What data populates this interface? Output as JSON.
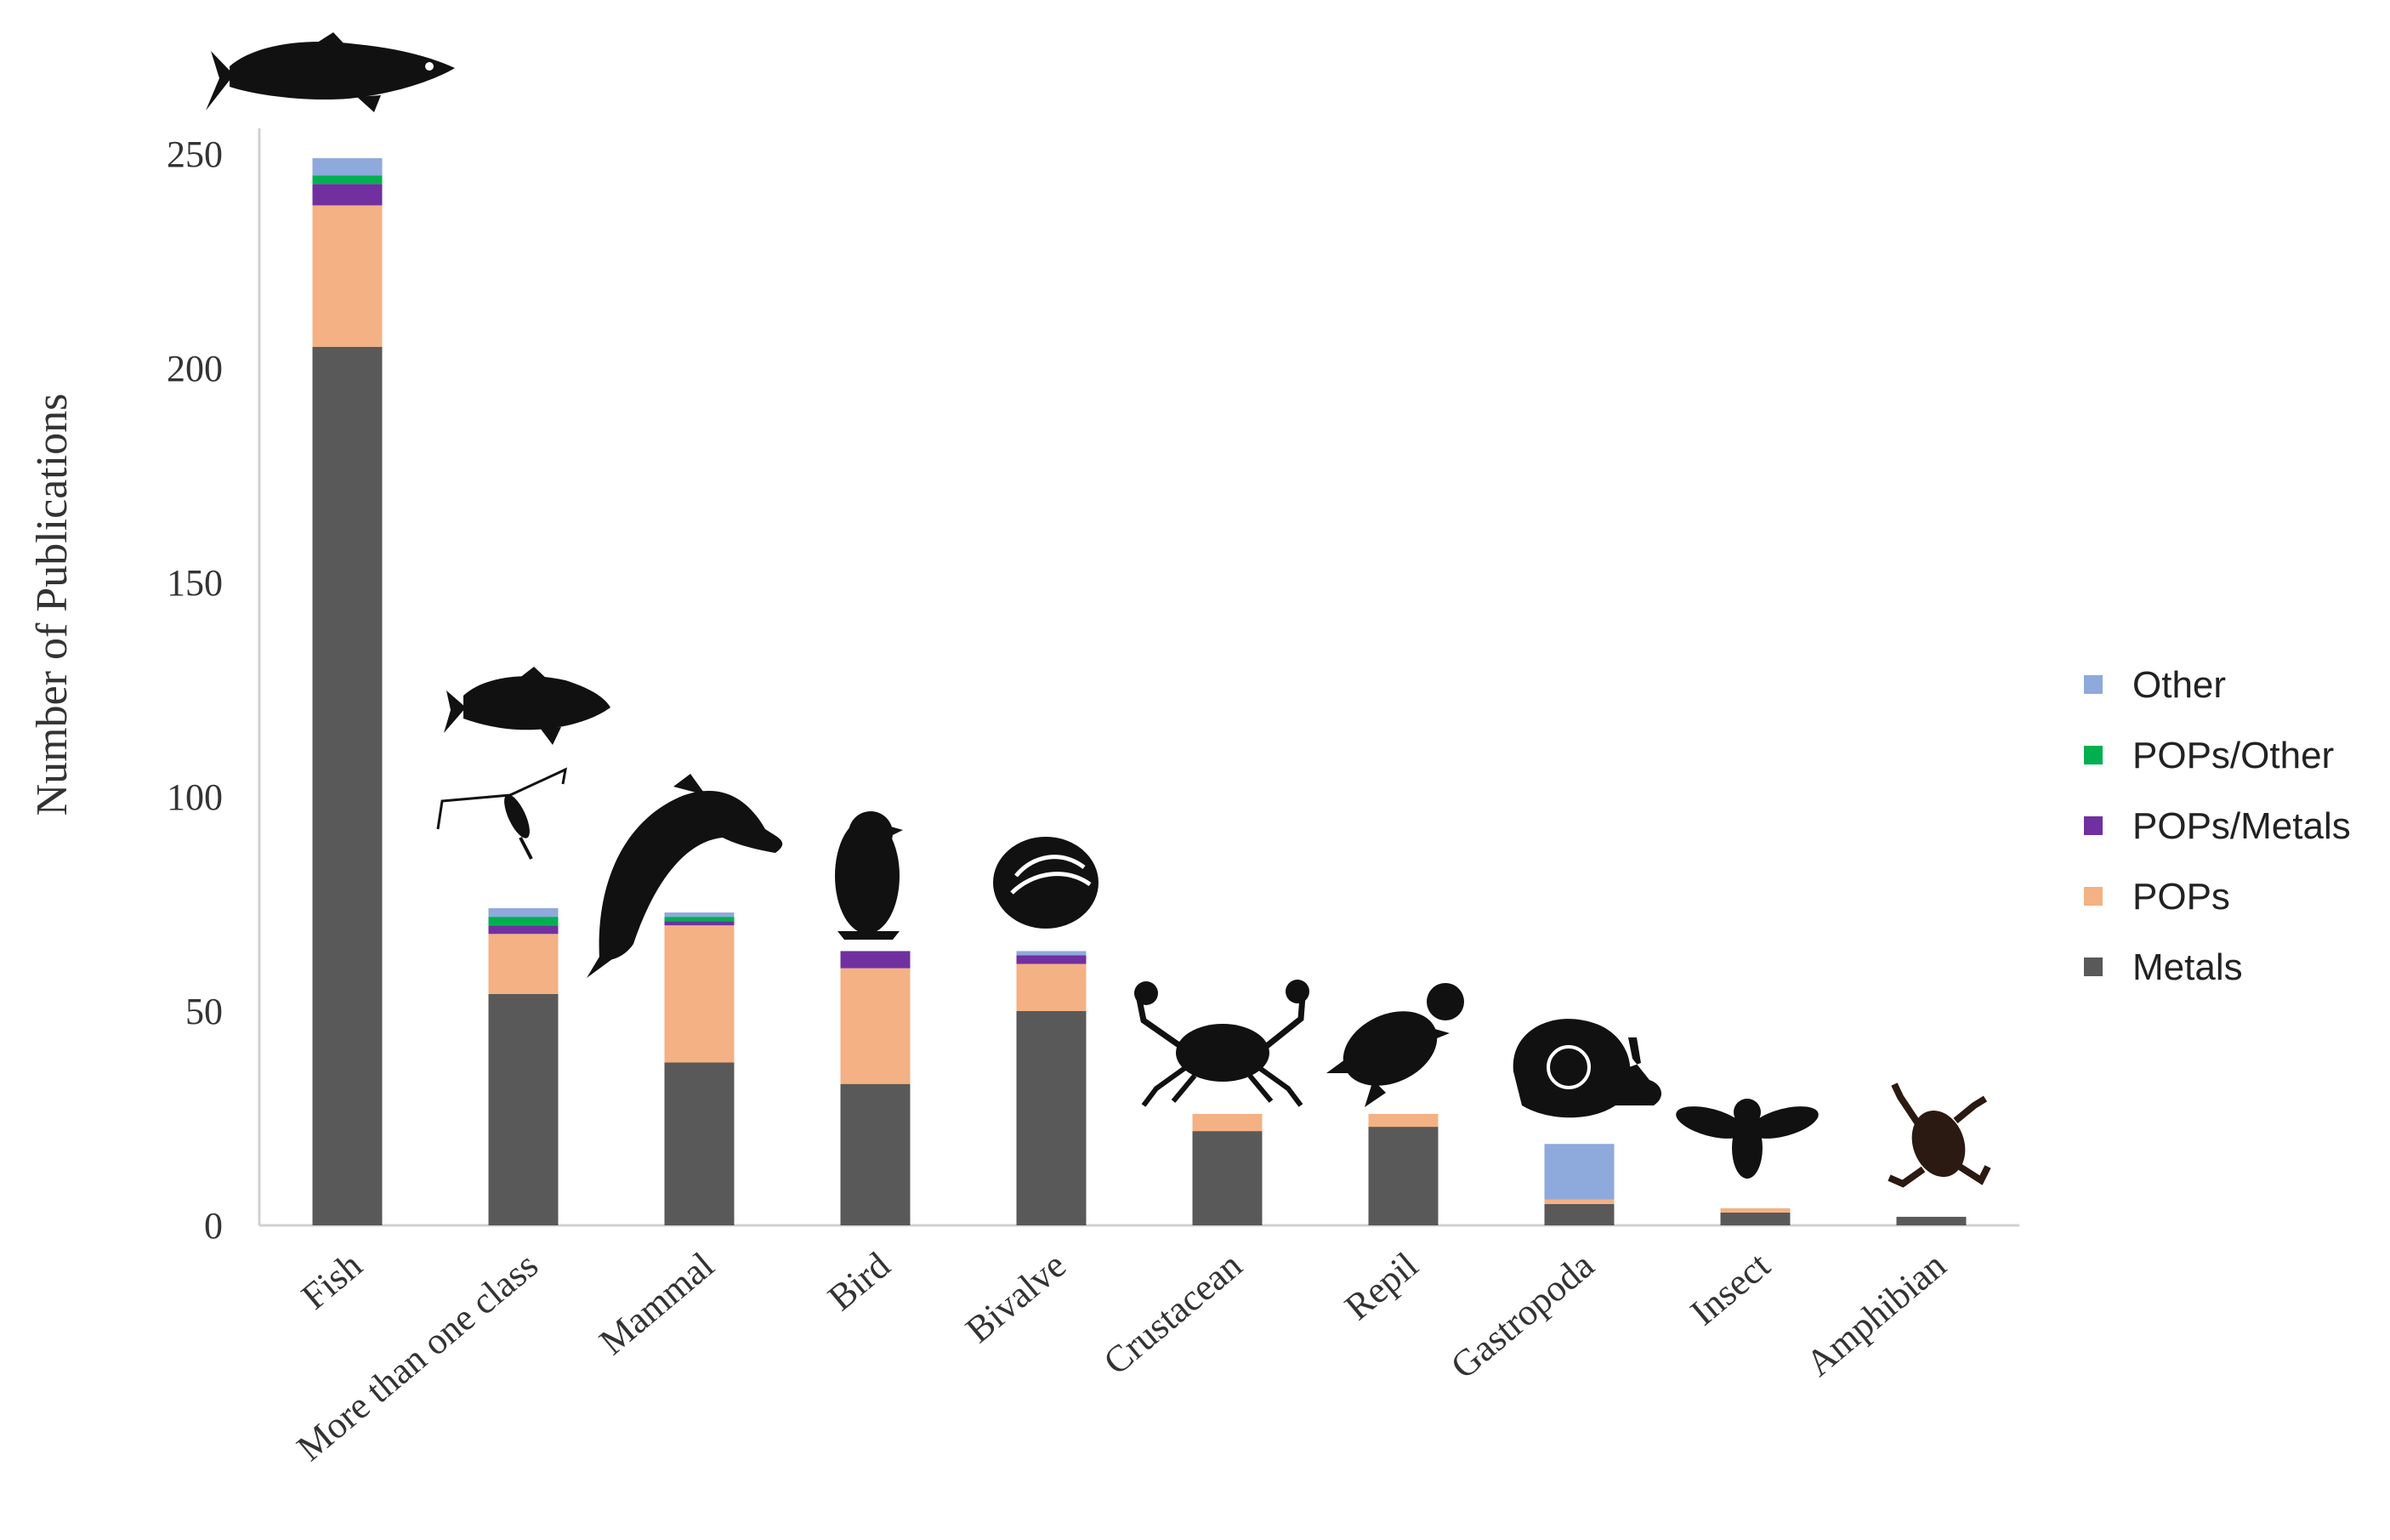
{
  "chart_data": {
    "type": "bar",
    "stacked": true,
    "title": "",
    "xlabel": "",
    "ylabel": "Number of Publications",
    "ylim": [
      0,
      250
    ],
    "yticks": [
      0,
      50,
      100,
      150,
      200,
      250
    ],
    "grid": false,
    "legend_position": "right",
    "categories": [
      "Fish",
      "More than one class",
      "Mammal",
      "Bird",
      "Bivalve",
      "Crustacean",
      "Repil",
      "Gastropoda",
      "Insect",
      "Amphibian"
    ],
    "series": [
      {
        "name": "Metals",
        "color": "#595959",
        "values": [
          205,
          54,
          38,
          33,
          50,
          22,
          23,
          5,
          3,
          2
        ]
      },
      {
        "name": "POPs",
        "color": "#F4B183",
        "values": [
          33,
          14,
          32,
          27,
          11,
          4,
          3,
          1,
          1,
          0
        ]
      },
      {
        "name": "POPs/Metals",
        "color": "#7030A0",
        "values": [
          5,
          2,
          1,
          4,
          2,
          0,
          0,
          0,
          0,
          0
        ]
      },
      {
        "name": "POPs/Other",
        "color": "#00B050",
        "values": [
          2,
          2,
          1,
          0,
          0,
          0,
          0,
          0,
          0,
          0
        ]
      },
      {
        "name": "Other",
        "color": "#8EA9DB",
        "values": [
          4,
          2,
          1,
          0,
          1,
          0,
          0,
          13,
          0,
          0
        ]
      }
    ],
    "legend_order": [
      "Other",
      "POPs/Other",
      "POPs/Metals",
      "POPs",
      "Metals"
    ],
    "icons": [
      "fish-icon",
      "fish-and-copepod-icon",
      "dolphin-icon",
      "penguin-icon",
      "shell-icon",
      "crab-icon",
      "turtle-icon",
      "snail-icon",
      "fly-icon",
      "frog-icon"
    ]
  }
}
